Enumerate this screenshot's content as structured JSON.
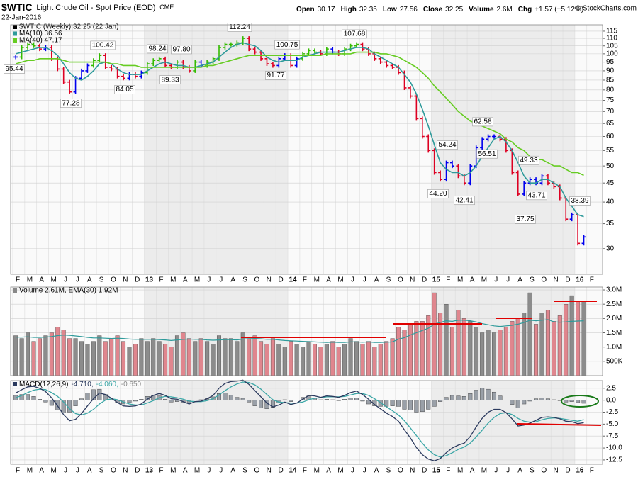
{
  "header": {
    "symbol": "$WTIC",
    "name": "Light Crude Oil - Spot Price (EOD)",
    "exchange": "CME",
    "date": "22-Jan-2016",
    "quote": [
      {
        "label": "Open",
        "value": "30.17"
      },
      {
        "label": "High",
        "value": "32.35"
      },
      {
        "label": "Low",
        "value": "27.56"
      },
      {
        "label": "Close",
        "value": "32.25"
      },
      {
        "label": "Volume",
        "value": "2.6M"
      },
      {
        "label": "Chg",
        "value": "+1.57 (+5.12%)"
      }
    ],
    "credit": "© StockCharts.com"
  },
  "chart_data": [
    {
      "type": "price-bars",
      "log_scale": true,
      "grid": true,
      "xticks": [
        "F",
        "M",
        "A",
        "M",
        "J",
        "J",
        "A",
        "S",
        "O",
        "N",
        "D",
        "13",
        "F",
        "M",
        "A",
        "M",
        "J",
        "J",
        "A",
        "S",
        "O",
        "N",
        "D",
        "14",
        "F",
        "M",
        "A",
        "M",
        "J",
        "J",
        "A",
        "S",
        "O",
        "N",
        "D",
        "15",
        "F",
        "M",
        "A",
        "M",
        "J",
        "J",
        "A",
        "S",
        "O",
        "N",
        "D",
        "16",
        "F"
      ],
      "ylim": [
        25.6,
        119.6
      ],
      "yticks": [
        30,
        35,
        40,
        45,
        50,
        55,
        60,
        65,
        70,
        75,
        80,
        85,
        90,
        95,
        100,
        105,
        110,
        115
      ],
      "colors": {
        "up": "#33bb00",
        "down": "#dd0022",
        "neutral": "#0000ee"
      },
      "series": [
        {
          "name": "$WTIC (Weekly) 32.25 (22 Jan)",
          "color": "#000000",
          "values": [
            98,
            104,
            106,
            105,
            103,
            104,
            97,
            91,
            84,
            79,
            86,
            90,
            93,
            96,
            99,
            92,
            91,
            87,
            86,
            88,
            87,
            89,
            94,
            96,
            97,
            93,
            92,
            95,
            92,
            90,
            95,
            93,
            95,
            97,
            104,
            106,
            106,
            107,
            110,
            103,
            101,
            97,
            94,
            93,
            97,
            99,
            93,
            97,
            100,
            102,
            101,
            100,
            103,
            101,
            100,
            103,
            105,
            106,
            103,
            100,
            97,
            95,
            93,
            92,
            89,
            81,
            77,
            67,
            60,
            55,
            48,
            46,
            51,
            50,
            47,
            45,
            50,
            56,
            59,
            60,
            60,
            59,
            55,
            48,
            42,
            45,
            46,
            45,
            47,
            45,
            44,
            41,
            36,
            37,
            31,
            32.25
          ]
        },
        {
          "name": "MA(10) 36.56",
          "color": "#2e9a9a",
          "values": [
            100,
            101,
            102,
            103,
            104,
            104,
            102,
            99,
            94,
            89,
            86,
            85,
            87,
            90,
            94,
            95,
            94,
            91,
            89,
            88,
            88,
            88,
            90,
            92,
            94,
            95,
            94,
            93,
            93,
            92,
            92,
            93,
            94,
            95,
            98,
            101,
            104,
            106,
            107,
            106,
            105,
            102,
            98,
            96,
            95,
            96,
            96,
            96,
            98,
            99,
            100,
            101,
            101,
            101,
            101,
            102,
            103,
            104,
            104,
            103,
            100,
            98,
            96,
            94,
            92,
            88,
            84,
            78,
            71,
            64,
            57,
            51,
            49,
            48,
            48,
            47,
            48,
            50,
            53,
            56,
            59,
            60,
            58,
            55,
            51,
            47,
            45,
            45,
            46,
            46,
            45,
            44,
            41,
            39,
            37,
            36.56
          ]
        },
        {
          "name": "MA(40) 47.17",
          "color": "#66cc22",
          "values": [
            94,
            95,
            96,
            96,
            97,
            97,
            97,
            97,
            96,
            95,
            95,
            95,
            95,
            95,
            95,
            95,
            94,
            94,
            93,
            93,
            93,
            92,
            92,
            92,
            92,
            92,
            92,
            92,
            92,
            92,
            92,
            92,
            93,
            93,
            94,
            95,
            96,
            97,
            98,
            99,
            99,
            99,
            99,
            99,
            99,
            99,
            99,
            99,
            99,
            99,
            99,
            99,
            100,
            100,
            100,
            100,
            100,
            101,
            101,
            101,
            101,
            100,
            100,
            99,
            98,
            96,
            94,
            92,
            89,
            86,
            82,
            79,
            76,
            73,
            70,
            68,
            66,
            65,
            64,
            63,
            62,
            61,
            59,
            58,
            56,
            55,
            53,
            52,
            52,
            51,
            50,
            50,
            49,
            48,
            48,
            47.17
          ]
        }
      ],
      "annotations": [
        {
          "value": 95.44,
          "label": "95.44"
        },
        {
          "value": 100.42,
          "label": "100.42"
        },
        {
          "value": 77.28,
          "label": "77.28"
        },
        {
          "value": 84.05,
          "label": "84.05"
        },
        {
          "value": 98.24,
          "label": "98.24"
        },
        {
          "value": 97.8,
          "label": "97.80"
        },
        {
          "value": 89.33,
          "label": "89.33"
        },
        {
          "value": 112.24,
          "label": "112.24"
        },
        {
          "value": 100.75,
          "label": "100.75"
        },
        {
          "value": 91.77,
          "label": "91.77"
        },
        {
          "value": 107.68,
          "label": "107.68"
        },
        {
          "value": 54.24,
          "label": "54.24"
        },
        {
          "value": 44.2,
          "label": "44.20"
        },
        {
          "value": 42.41,
          "label": "42.41"
        },
        {
          "value": 62.58,
          "label": "62.58"
        },
        {
          "value": 56.51,
          "label": "56.51"
        },
        {
          "value": 49.33,
          "label": "49.33"
        },
        {
          "value": 43.71,
          "label": "43.71"
        },
        {
          "value": 37.75,
          "label": "37.75"
        },
        {
          "value": 38.39,
          "label": "38.39"
        }
      ]
    },
    {
      "type": "volume",
      "title": "Volume 2.61M, EMA(30) 1.92M",
      "grid": true,
      "ylim": [
        0,
        3.1
      ],
      "yticks": [
        {
          "value": 0.5,
          "label": "500K"
        },
        {
          "value": 1.0,
          "label": "1.0M"
        },
        {
          "value": 1.5,
          "label": "1.5M"
        },
        {
          "value": 2.0,
          "label": "2.0M"
        },
        {
          "value": 2.5,
          "label": "2.5M"
        },
        {
          "value": 3.0,
          "label": "3.0M"
        }
      ],
      "colors": {
        "up": "#8c8c8c",
        "down": "#e0868e"
      },
      "values": [
        1.4,
        1.3,
        1.5,
        1.2,
        1.3,
        1.4,
        1.5,
        1.7,
        1.6,
        1.3,
        1.3,
        1.2,
        1.1,
        1.2,
        1.4,
        1.2,
        1.3,
        1.4,
        1.2,
        1.0,
        1.1,
        1.3,
        1.2,
        1.3,
        1.2,
        1.1,
        1.0,
        1.4,
        1.5,
        1.3,
        1.2,
        1.3,
        1.2,
        1.1,
        1.4,
        1.3,
        1.3,
        1.2,
        1.5,
        1.3,
        1.4,
        1.2,
        1.1,
        1.3,
        1.1,
        1.0,
        1.2,
        1.1,
        1.0,
        1.2,
        1.1,
        1.0,
        1.1,
        1.2,
        1.0,
        1.1,
        1.3,
        1.2,
        1.1,
        1.2,
        1.0,
        1.1,
        1.2,
        1.3,
        1.7,
        1.6,
        1.8,
        1.9,
        1.9,
        2.1,
        2.9,
        2.2,
        2.5,
        1.7,
        2.3,
        2.0,
        1.9,
        1.7,
        1.5,
        1.6,
        1.5,
        1.6,
        1.7,
        1.9,
        2.0,
        2.2,
        2.9,
        1.8,
        2.2,
        2.3,
        1.9,
        2.1,
        2.5,
        2.8,
        2.6,
        2.61
      ],
      "ema_color": "#2e9a9a",
      "ema": [
        1.35,
        1.35,
        1.36,
        1.34,
        1.34,
        1.35,
        1.37,
        1.4,
        1.42,
        1.41,
        1.39,
        1.37,
        1.34,
        1.32,
        1.32,
        1.31,
        1.3,
        1.31,
        1.3,
        1.28,
        1.27,
        1.27,
        1.27,
        1.27,
        1.26,
        1.25,
        1.23,
        1.25,
        1.27,
        1.28,
        1.27,
        1.27,
        1.25,
        1.24,
        1.25,
        1.26,
        1.26,
        1.25,
        1.28,
        1.29,
        1.3,
        1.29,
        1.27,
        1.27,
        1.25,
        1.23,
        1.22,
        1.21,
        1.2,
        1.19,
        1.18,
        1.17,
        1.16,
        1.17,
        1.16,
        1.16,
        1.18,
        1.18,
        1.17,
        1.18,
        1.16,
        1.16,
        1.17,
        1.18,
        1.28,
        1.33,
        1.42,
        1.5,
        1.58,
        1.66,
        1.8,
        1.86,
        1.92,
        1.9,
        1.94,
        1.94,
        1.92,
        1.88,
        1.82,
        1.78,
        1.74,
        1.72,
        1.74,
        1.76,
        1.8,
        1.86,
        1.94,
        1.92,
        1.94,
        1.96,
        1.88,
        1.87,
        1.88,
        1.9,
        1.91,
        1.92
      ]
    },
    {
      "type": "macd",
      "title": "MACD(12,26,9)",
      "legend_values": [
        "-4.710,",
        "-4.060,",
        "-0.650"
      ],
      "grid": true,
      "ylim": [
        -13.4,
        4.1
      ],
      "yticks": [
        2.5,
        {
          "value": 0,
          "label": "0.0"
        },
        -2.5,
        {
          "value": -5,
          "label": "-5.0"
        },
        -7.5,
        {
          "value": -10,
          "label": "-10.0"
        },
        -12.5
      ],
      "series": [
        {
          "color": "#2b3a5e",
          "values": [
            1.5,
            2.2,
            2.8,
            2.9,
            2.5,
            1.8,
            0.5,
            -1.2,
            -3.0,
            -4.3,
            -4.0,
            -2.8,
            -1.2,
            0.3,
            1.5,
            1.2,
            0.4,
            -0.5,
            -1.2,
            -1.3,
            -1.2,
            -0.8,
            0.2,
            1.0,
            1.4,
            1.0,
            0.3,
            0.2,
            -0.3,
            -0.8,
            -0.3,
            -0.2,
            0.3,
            1.0,
            2.5,
            3.5,
            3.9,
            4.0,
            4.2,
            3.3,
            2.0,
            0.7,
            -0.6,
            -1.4,
            -1.0,
            -0.4,
            -0.9,
            -0.6,
            0.2,
            1.0,
            0.9,
            0.6,
            0.9,
            0.8,
            0.6,
            1.0,
            1.6,
            1.9,
            1.2,
            0.2,
            -0.9,
            -1.8,
            -2.7,
            -3.4,
            -4.4,
            -6.2,
            -7.9,
            -9.9,
            -11.4,
            -12.3,
            -12.7,
            -12.2,
            -11.0,
            -10.0,
            -9.4,
            -9.0,
            -7.6,
            -5.6,
            -3.8,
            -2.5,
            -1.9,
            -1.9,
            -2.6,
            -3.9,
            -5.4,
            -5.2,
            -4.8,
            -4.2,
            -3.6,
            -3.5,
            -3.6,
            -3.9,
            -4.4,
            -4.5,
            -4.9,
            -4.71
          ]
        },
        {
          "color": "#3aa6a6",
          "values": [
            0.5,
            1.0,
            1.6,
            2.1,
            2.3,
            2.2,
            1.6,
            0.8,
            -0.4,
            -1.8,
            -2.8,
            -3.1,
            -2.7,
            -1.9,
            -0.8,
            0.0,
            0.3,
            0.1,
            -0.4,
            -0.8,
            -1.0,
            -1.0,
            -0.6,
            -0.1,
            0.5,
            0.8,
            0.7,
            0.5,
            0.2,
            -0.2,
            -0.3,
            -0.3,
            -0.1,
            0.3,
            1.1,
            2.0,
            2.8,
            3.4,
            3.8,
            3.7,
            3.2,
            2.3,
            1.2,
            0.1,
            -0.4,
            -0.5,
            -0.6,
            -0.6,
            -0.4,
            0.1,
            0.4,
            0.5,
            0.7,
            0.7,
            0.7,
            0.8,
            1.1,
            1.4,
            1.4,
            1.0,
            0.3,
            -0.5,
            -1.4,
            -2.2,
            -3.1,
            -4.3,
            -5.8,
            -7.4,
            -9.0,
            -10.4,
            -11.4,
            -11.9,
            -11.6,
            -11.0,
            -10.3,
            -9.8,
            -9.0,
            -7.7,
            -6.3,
            -4.8,
            -3.6,
            -2.8,
            -2.6,
            -3.0,
            -3.8,
            -4.4,
            -4.6,
            -4.5,
            -4.1,
            -3.8,
            -3.7,
            -3.8,
            -4.0,
            -4.2,
            -4.4,
            -4.06
          ]
        },
        {
          "color": "#9aa0a8",
          "values": [
            1.0,
            1.2,
            1.2,
            0.8,
            0.2,
            -0.4,
            -1.1,
            -2.0,
            -2.6,
            -2.5,
            -1.2,
            0.3,
            1.5,
            2.2,
            2.3,
            1.2,
            0.1,
            -0.6,
            -0.8,
            -0.5,
            -0.2,
            0.2,
            0.8,
            1.1,
            0.9,
            0.2,
            -0.4,
            -0.3,
            -0.5,
            -0.6,
            0.0,
            0.1,
            0.4,
            0.7,
            1.4,
            1.5,
            1.1,
            0.6,
            0.4,
            -0.4,
            -1.2,
            -1.6,
            -1.8,
            -1.5,
            -0.6,
            0.1,
            -0.3,
            0.0,
            0.6,
            0.9,
            0.5,
            0.1,
            0.2,
            0.1,
            -0.1,
            0.2,
            0.5,
            0.5,
            -0.2,
            -0.8,
            -1.2,
            -1.3,
            -1.3,
            -1.2,
            -1.3,
            -1.9,
            -2.1,
            -2.5,
            -2.4,
            -1.9,
            -1.3,
            -0.3,
            0.6,
            1.0,
            0.9,
            0.8,
            1.4,
            2.1,
            2.5,
            2.3,
            1.7,
            0.9,
            0.0,
            -0.9,
            -1.6,
            -0.8,
            -0.2,
            0.3,
            0.5,
            0.3,
            0.1,
            -0.1,
            -0.4,
            -0.3,
            -0.5,
            -0.65
          ]
        }
      ]
    }
  ]
}
